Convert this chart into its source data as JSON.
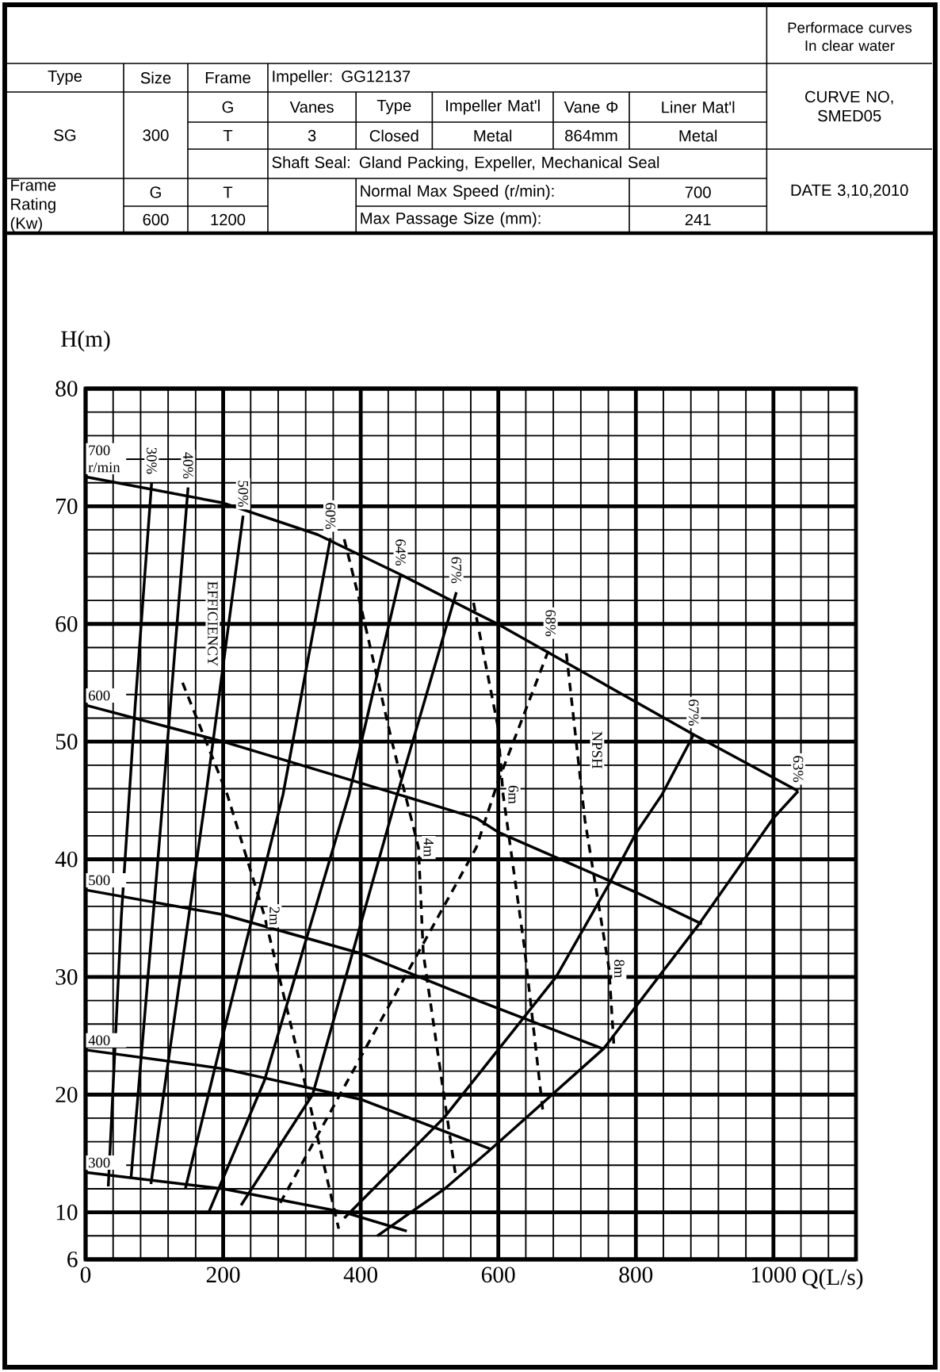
{
  "chart_data": {
    "type": "line",
    "title": "Performace curves In clear water",
    "xlabel": "Q(L/s)",
    "ylabel": "H(m)",
    "xlim": [
      0,
      1120
    ],
    "ylim": [
      6,
      80
    ],
    "xticks": [
      0,
      200,
      400,
      600,
      800,
      1000
    ],
    "yticks": [
      6,
      10,
      20,
      30,
      40,
      50,
      60,
      70,
      80
    ],
    "grid": true,
    "series": [
      {
        "name": "700 r/min",
        "color": "#000000",
        "x": [
          0,
          199,
          337,
          458,
          568,
          599,
          884,
          1036
        ],
        "values": [
          72.5,
          70.3,
          67.6,
          64.2,
          60.9,
          60.0,
          50.6,
          45.8
        ]
      },
      {
        "name": "600",
        "color": "#000000",
        "x": [
          0,
          200,
          399,
          568,
          600,
          800,
          896
        ],
        "values": [
          53.1,
          50.0,
          46.5,
          43.5,
          42.3,
          37.2,
          34.5
        ]
      },
      {
        "name": "500",
        "color": "#000000",
        "x": [
          0,
          200,
          400,
          570,
          752
        ],
        "values": [
          37.4,
          35.3,
          32.0,
          28.0,
          23.9
        ]
      },
      {
        "name": "400",
        "color": "#000000",
        "x": [
          0,
          200,
          400,
          588
        ],
        "values": [
          23.8,
          22.2,
          19.6,
          15.4
        ]
      },
      {
        "name": "300",
        "color": "#000000",
        "x": [
          0,
          200,
          376,
          467
        ],
        "values": [
          13.4,
          12.0,
          10.0,
          8.4
        ]
      },
      {
        "name": "30%",
        "color": "#000000",
        "x": [
          33,
          52,
          72,
          96
        ],
        "values": [
          12.2,
          35.2,
          53.0,
          72.0
        ]
      },
      {
        "name": "40%",
        "color": "#000000",
        "x": [
          66,
          108,
          149
        ],
        "values": [
          12.9,
          42.0,
          71.6
        ]
      },
      {
        "name": "50%",
        "color": "#000000",
        "x": [
          95,
          175,
          229
        ],
        "values": [
          12.4,
          45.5,
          69.2
        ]
      },
      {
        "name": "60%",
        "color": "#000000",
        "x": [
          145,
          199,
          287,
          356
        ],
        "values": [
          12.0,
          24.9,
          45.5,
          67.3
        ]
      },
      {
        "name": "64%",
        "color": "#000000",
        "x": [
          179,
          260,
          383,
          458
        ],
        "values": [
          10.0,
          21.2,
          45.5,
          64.2
        ]
      },
      {
        "name": "67%",
        "color": "#000000",
        "x": [
          226,
          330,
          453,
          539
        ],
        "values": [
          10.6,
          20.0,
          45.5,
          62.7
        ]
      },
      {
        "name": "68%",
        "color": "#000000",
        "line_style": "dashed",
        "x": [
          283,
          568,
          599,
          676
        ],
        "values": [
          10.8,
          41.0,
          46.5,
          58.2
        ]
      },
      {
        "name": "67%",
        "color": "#000000",
        "x": [
          376,
          522,
          601,
          684,
          761,
          800,
          838,
          884
        ],
        "values": [
          9.5,
          18.1,
          23.9,
          30.0,
          37.9,
          42.2,
          45.5,
          50.6
        ]
      },
      {
        "name": "63%",
        "color": "#000000",
        "x": [
          424,
          522,
          588,
          753,
          892,
          1000,
          1036
        ],
        "values": [
          8.0,
          12.0,
          15.3,
          23.9,
          34.5,
          43.5,
          45.8
        ]
      },
      {
        "name": "2m",
        "color": "#000000",
        "line_style": "dashed",
        "x": [
          141,
          206,
          260,
          318,
          368
        ],
        "values": [
          55.0,
          45.5,
          35.2,
          21.2,
          8.6
        ]
      },
      {
        "name": "4m",
        "color": "#000000",
        "line_style": "dashed",
        "x": [
          376,
          399,
          445,
          484,
          491,
          538
        ],
        "values": [
          67.2,
          61.8,
          50.1,
          41.0,
          32.0,
          13.1
        ]
      },
      {
        "name": "6m",
        "color": "#000000",
        "line_style": "dashed",
        "x": [
          564,
          599,
          607,
          638,
          665
        ],
        "values": [
          61.8,
          51.4,
          45.5,
          32.5,
          18.5
        ]
      },
      {
        "name": "8m",
        "color": "#000000",
        "line_style": "dashed",
        "x": [
          699,
          726,
          761,
          768
        ],
        "values": [
          57.5,
          43.3,
          30.7,
          24.2
        ]
      }
    ],
    "annotations": [
      "Type",
      "Size",
      "Frame",
      "Impeller: GG12137",
      "CURVE NO, SMED05",
      "SG",
      "300",
      "G",
      "Vanes",
      "Type",
      "Impeller Mat'l",
      "Vane Φ",
      "Liner Mat'l",
      "T",
      "3",
      "Closed",
      "Metal",
      "864mm",
      "Metal",
      "Shaft Seal: Gland Packing, Expeller, Mechanical Seal",
      "DATE 3,10,2010",
      "Frame Rating (Kw)",
      "G",
      "T",
      "Normal Max Speed (r/min):",
      "700",
      "600",
      "1200",
      "Max Passage Size (mm):",
      "241",
      "EFFICIENCY",
      "NPSH"
    ]
  }
}
